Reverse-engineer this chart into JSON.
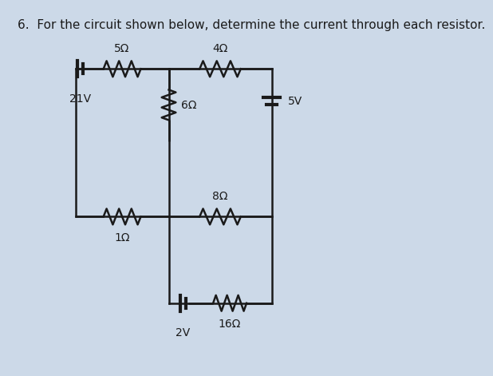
{
  "title": "6.  For the circuit shown below, determine the current through each resistor.",
  "bg_color": "#ccd9e8",
  "wire_color": "#1a1a1a",
  "text_color": "#1a1a1a",
  "title_fontsize": 11,
  "label_fontsize": 10,
  "xL": 0.21,
  "xM": 0.5,
  "xR": 0.82,
  "yT": 0.83,
  "yM": 0.63,
  "yB": 0.42,
  "yBB": 0.18
}
